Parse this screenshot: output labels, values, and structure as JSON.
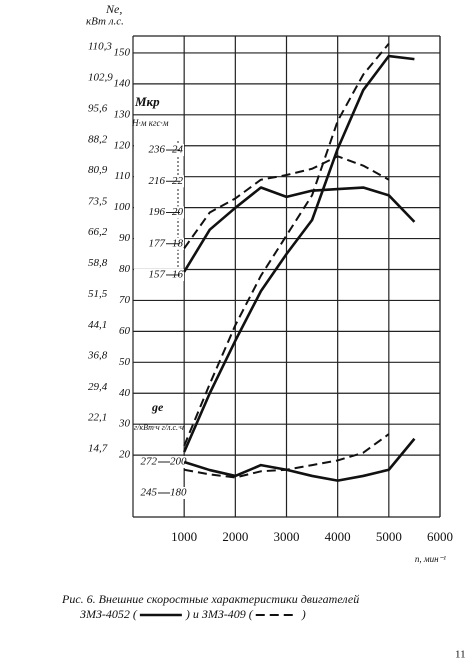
{
  "chart_data": {
    "type": "line",
    "ylabel": "Ne,",
    "yunits": "кВт л.с.",
    "xlabel": "n, мин⁻¹",
    "x": [
      1000,
      1500,
      2000,
      2500,
      3000,
      3500,
      4000,
      4500,
      5000,
      5500
    ],
    "xlim": [
      0,
      6000
    ],
    "xticks": [
      1000,
      2000,
      3000,
      4000,
      5000,
      6000
    ],
    "ylim": [
      0,
      160
    ],
    "yticks": [
      20,
      30,
      40,
      50,
      60,
      70,
      80,
      90,
      100,
      110,
      120,
      130,
      140,
      150
    ],
    "y2lim": [
      0,
      117.68
    ],
    "y2ticks": [
      {
        "value": 14.7,
        "label": "14,7"
      },
      {
        "value": 22.1,
        "label": "22,1"
      },
      {
        "value": 29.4,
        "label": "29,4"
      },
      {
        "value": 36.8,
        "label": "36,8"
      },
      {
        "value": 44.1,
        "label": "44,1"
      },
      {
        "value": 51.5,
        "label": "51,5"
      },
      {
        "value": 58.8,
        "label": "58,8"
      },
      {
        "value": 66.2,
        "label": "66,2"
      },
      {
        "value": 73.5,
        "label": "73,5"
      },
      {
        "value": 80.9,
        "label": "80,9"
      },
      {
        "value": 88.2,
        "label": "88,2"
      },
      {
        "value": 95.6,
        "label": "95,6"
      },
      {
        "value": 102.9,
        "label": "102,9"
      },
      {
        "value": 110.3,
        "label": "110,3"
      }
    ],
    "torque_label": "Mкр",
    "torque_units": "Н·м кгс·м",
    "torque_lim": [
      0.5,
      32.2
    ],
    "torque_ticks": [
      16,
      18,
      20,
      22,
      24
    ],
    "torque_ticks_nm": [
      157,
      177,
      196,
      216,
      236
    ],
    "ge_label": "ge",
    "ge_units": "г/кВт·ч  г/л.с.·ч",
    "ge_lim": [
      164.5,
      484
    ],
    "ge_ticks": [
      180,
      200
    ],
    "ge_ticks_kwh": [
      245,
      272
    ],
    "grid": true,
    "series": [
      {
        "name": "ЗМЗ-4052",
        "color": "#111111",
        "dashed": false,
        "ne": [
          21,
          40,
          57,
          73,
          85,
          96,
          119,
          138,
          149,
          148
        ],
        "torque": [
          16.2,
          18.9,
          20.3,
          21.6,
          21.0,
          21.4,
          21.5,
          21.6,
          21.1,
          19.4
        ],
        "ge": [
          200,
          194.8,
          191,
          198,
          195,
          191,
          188,
          191,
          195,
          215
        ]
      },
      {
        "name": "ЗМЗ-409",
        "color": "#111111",
        "dashed": true,
        "ne": [
          23,
          43,
          62,
          78,
          91,
          104,
          128,
          143,
          153,
          null
        ],
        "torque": [
          17.7,
          20.0,
          20.9,
          22.1,
          22.4,
          22.8,
          23.6,
          23.0,
          22.1,
          null
        ],
        "ge": [
          195,
          192,
          190,
          194,
          195,
          198,
          201,
          206,
          218,
          null
        ]
      }
    ],
    "caption": "Рис. 6. Внешние скоростные характеристики двигателей",
    "legend_open": "(",
    "legend_close": ")",
    "legend_joiner": "и",
    "page_number": "11"
  }
}
